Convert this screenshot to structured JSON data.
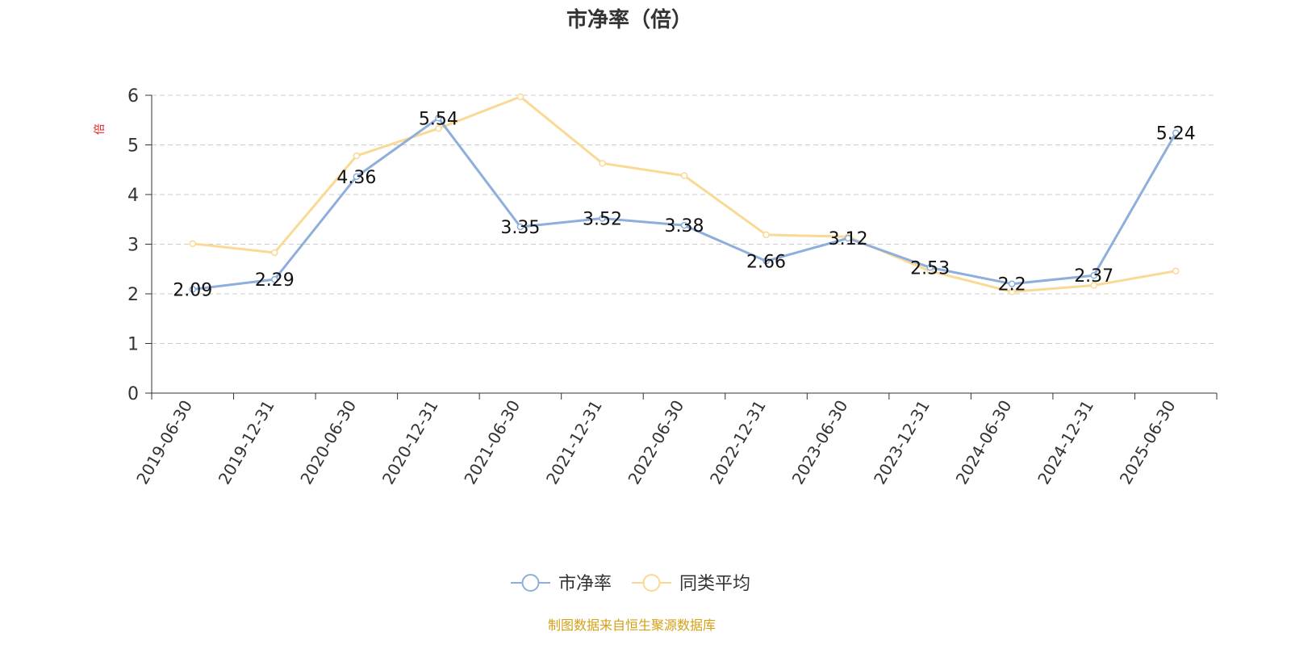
{
  "chart_data": {
    "type": "line",
    "title": "市净率（倍）",
    "ylabel": "倍",
    "xlabel": "",
    "ylim": [
      0,
      6
    ],
    "yticks": [
      0,
      1,
      2,
      3,
      4,
      5,
      6
    ],
    "grid": true,
    "legend_position": "bottom-center",
    "categories": [
      "2019-06-30",
      "2019-12-31",
      "2020-06-30",
      "2020-12-31",
      "2021-06-30",
      "2021-12-31",
      "2022-06-30",
      "2022-12-31",
      "2023-06-30",
      "2023-12-31",
      "2024-06-30",
      "2024-12-31",
      "2025-06-30"
    ],
    "series": [
      {
        "name": "市净率",
        "color": "#8eaedb",
        "values": [
          2.09,
          2.29,
          4.36,
          5.54,
          3.35,
          3.52,
          3.38,
          2.66,
          3.12,
          2.53,
          2.2,
          2.37,
          5.24
        ],
        "labels": [
          "2.09",
          "2.29",
          "4.36",
          "5.54",
          "3.35",
          "3.52",
          "3.38",
          "2.66",
          "3.12",
          "2.53",
          "2.2",
          "2.37",
          "5.24"
        ]
      },
      {
        "name": "同类平均",
        "color": "#f9d994",
        "values": [
          3.01,
          2.83,
          4.78,
          5.33,
          5.97,
          4.63,
          4.38,
          3.19,
          3.15,
          2.46,
          2.04,
          2.17,
          2.46
        ]
      }
    ]
  },
  "footer": {
    "source": "制图数据来自恒生聚源数据库",
    "source_color": "#d4a017"
  },
  "colors": {
    "title": "#333333",
    "axis": "#333333",
    "grid": "#cccccc",
    "ylabel": "#e02020"
  }
}
